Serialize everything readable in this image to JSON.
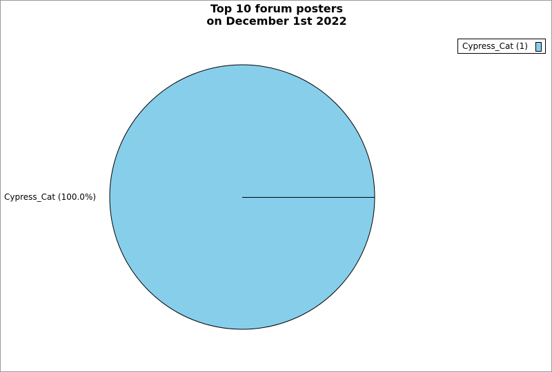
{
  "chart_data": {
    "type": "pie",
    "title_lines": [
      "Top 10 forum posters",
      "on December 1st 2022"
    ],
    "slices": [
      {
        "label": "Cypress_Cat",
        "value": 1,
        "percent_label": "Cypress_Cat (100.0%)",
        "legend_label": "Cypress_Cat (1)",
        "color": "#87ceeb"
      }
    ],
    "legend_position": "top-right"
  }
}
